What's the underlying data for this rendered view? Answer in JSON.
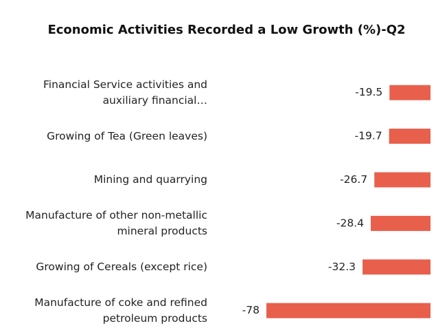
{
  "chart_data": {
    "type": "bar",
    "orientation": "horizontal",
    "title": "Economic Activities Recorded a Low Growth (%)-Q2",
    "categories": [
      "Financial Service activities and auxiliary financial…",
      "Growing of Tea (Green leaves)",
      "Mining and quarrying",
      "Manufacture of other non-metallic mineral products",
      "Growing of Cereals (except rice)",
      "Manufacture of coke and refined petroleum products"
    ],
    "values": [
      -19.5,
      -19.7,
      -26.7,
      -28.4,
      -32.3,
      -78
    ],
    "color": "#e8604c"
  }
}
